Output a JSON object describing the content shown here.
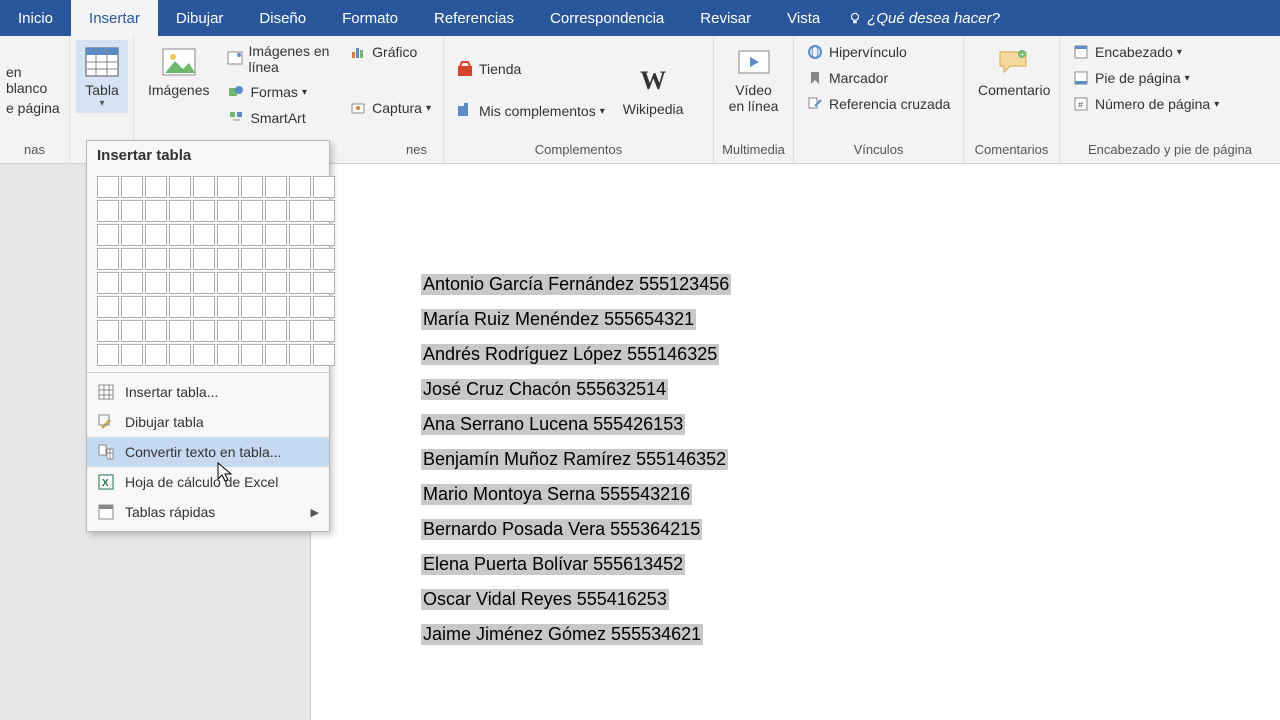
{
  "tabs": {
    "inicio": "Inicio",
    "insertar": "Insertar",
    "dibujar": "Dibujar",
    "diseno": "Diseño",
    "formato": "Formato",
    "referencias": "Referencias",
    "correspondencia": "Correspondencia",
    "revisar": "Revisar",
    "vista": "Vista",
    "hint": "¿Qué desea hacer?"
  },
  "ribbon": {
    "paginas": {
      "blank": "en blanco",
      "break": "e página",
      "group": "nas"
    },
    "tabla": {
      "label": "Tabla"
    },
    "imagenes": {
      "label": "Imágenes",
      "enlinea": "Imágenes en línea",
      "formas": "Formas",
      "smartart": "SmartArt",
      "grafico": "Gráfico",
      "captura": "Captura",
      "group_partial": "nes"
    },
    "complementos": {
      "tienda": "Tienda",
      "mis": "Mis complementos",
      "group": "Complementos",
      "wikipedia": "Wikipedia"
    },
    "multimedia": {
      "video": "Vídeo en línea",
      "group": "Multimedia"
    },
    "vinculos": {
      "hipervinculo": "Hipervínculo",
      "marcador": "Marcador",
      "referencia": "Referencia cruzada",
      "group": "Vínculos"
    },
    "comentarios": {
      "comentario": "Comentario",
      "group": "Comentarios"
    },
    "encabezado": {
      "encabezado": "Encabezado",
      "pie": "Pie de página",
      "numero": "Número de página",
      "group": "Encabezado y pie de página"
    }
  },
  "dropdown": {
    "title": "Insertar tabla",
    "items": {
      "insertar": "Insertar tabla...",
      "dibujar": "Dibujar tabla",
      "convertir": "Convertir texto en tabla...",
      "excel": "Hoja de cálculo de Excel",
      "rapidas": "Tablas rápidas"
    }
  },
  "document": {
    "lines": [
      "Antonio García Fernández 555123456",
      "María Ruiz Menéndez 555654321",
      "Andrés Rodríguez López 555146325",
      "José Cruz Chacón 555632514",
      "Ana Serrano Lucena 555426153",
      "Benjamín Muñoz Ramírez 555146352",
      "Mario Montoya Serna 555543216",
      "Bernardo Posada Vera 555364215",
      "Elena Puerta Bolívar 555613452",
      "Oscar Vidal Reyes 555416253",
      "Jaime Jiménez Gómez 555534621"
    ]
  },
  "colors": {
    "ribbon_blue": "#2a579b",
    "ribbon_bg": "#f3f3f3",
    "highlight_menu": "#c5d9f1",
    "text_highlight": "#c8c8c8"
  }
}
